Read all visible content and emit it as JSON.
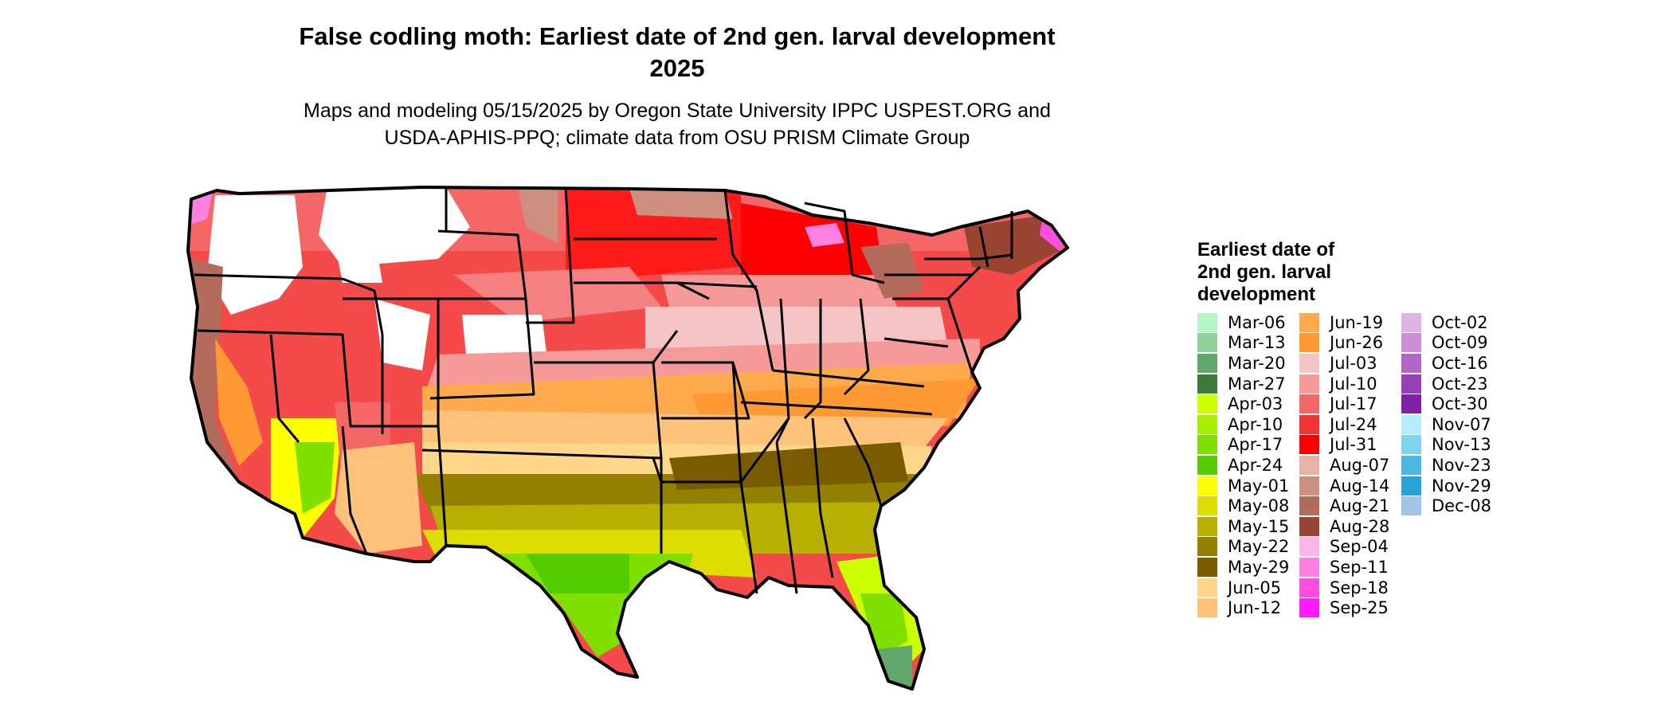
{
  "title_line1": "False codling moth: Earliest date of 2nd gen. larval development",
  "title_line2": "2025",
  "subtitle_line1": "Maps and modeling 05/15/2025 by Oregon State University IPPC USPEST.ORG and",
  "subtitle_line2": "USDA-APHIS-PPQ; climate data from OSU PRISM Climate Group",
  "legend": {
    "title": "Earliest date of 2nd gen. larval development",
    "items": [
      {
        "label": "Mar-06",
        "color": "#b3f5c3"
      },
      {
        "label": "Mar-13",
        "color": "#8fd19a"
      },
      {
        "label": "Mar-20",
        "color": "#63a86b"
      },
      {
        "label": "Mar-27",
        "color": "#3f7a3d"
      },
      {
        "label": "Apr-03",
        "color": "#ccff00"
      },
      {
        "label": "Apr-10",
        "color": "#a8ee00"
      },
      {
        "label": "Apr-17",
        "color": "#7fe000"
      },
      {
        "label": "Apr-24",
        "color": "#55cc00"
      },
      {
        "label": "May-01",
        "color": "#ffff00"
      },
      {
        "label": "May-08",
        "color": "#dddd00"
      },
      {
        "label": "May-15",
        "color": "#b8b000"
      },
      {
        "label": "May-22",
        "color": "#948000"
      },
      {
        "label": "May-29",
        "color": "#7a5c00"
      },
      {
        "label": "Jun-05",
        "color": "#ffd68a"
      },
      {
        "label": "Jun-12",
        "color": "#ffc27a"
      },
      {
        "label": "Jun-19",
        "color": "#ffab4d"
      },
      {
        "label": "Jun-26",
        "color": "#ff9933"
      },
      {
        "label": "Jul-03",
        "color": "#f5c4c4"
      },
      {
        "label": "Jul-10",
        "color": "#f59999"
      },
      {
        "label": "Jul-17",
        "color": "#f56666"
      },
      {
        "label": "Jul-24",
        "color": "#f53333"
      },
      {
        "label": "Jul-31",
        "color": "#ff0000"
      },
      {
        "label": "Aug-07",
        "color": "#e6b3a8"
      },
      {
        "label": "Aug-14",
        "color": "#cc8f80"
      },
      {
        "label": "Aug-21",
        "color": "#b36b5c"
      },
      {
        "label": "Aug-28",
        "color": "#994433"
      },
      {
        "label": "Sep-04",
        "color": "#ffb3e6"
      },
      {
        "label": "Sep-11",
        "color": "#ff80e0"
      },
      {
        "label": "Sep-18",
        "color": "#ff4de0"
      },
      {
        "label": "Sep-25",
        "color": "#ff1aff"
      },
      {
        "label": "Oct-02",
        "color": "#e0b3e6"
      },
      {
        "label": "Oct-09",
        "color": "#cc8fd6"
      },
      {
        "label": "Oct-16",
        "color": "#b366c7"
      },
      {
        "label": "Oct-23",
        "color": "#9940b8"
      },
      {
        "label": "Oct-30",
        "color": "#8020a8"
      },
      {
        "label": "Nov-07",
        "color": "#b3ecff"
      },
      {
        "label": "Nov-13",
        "color": "#80d4f0"
      },
      {
        "label": "Nov-23",
        "color": "#4db8e6"
      },
      {
        "label": "Nov-29",
        "color": "#26a3d9"
      },
      {
        "label": "Dec-08",
        "color": "#a3c2e6"
      }
    ]
  }
}
